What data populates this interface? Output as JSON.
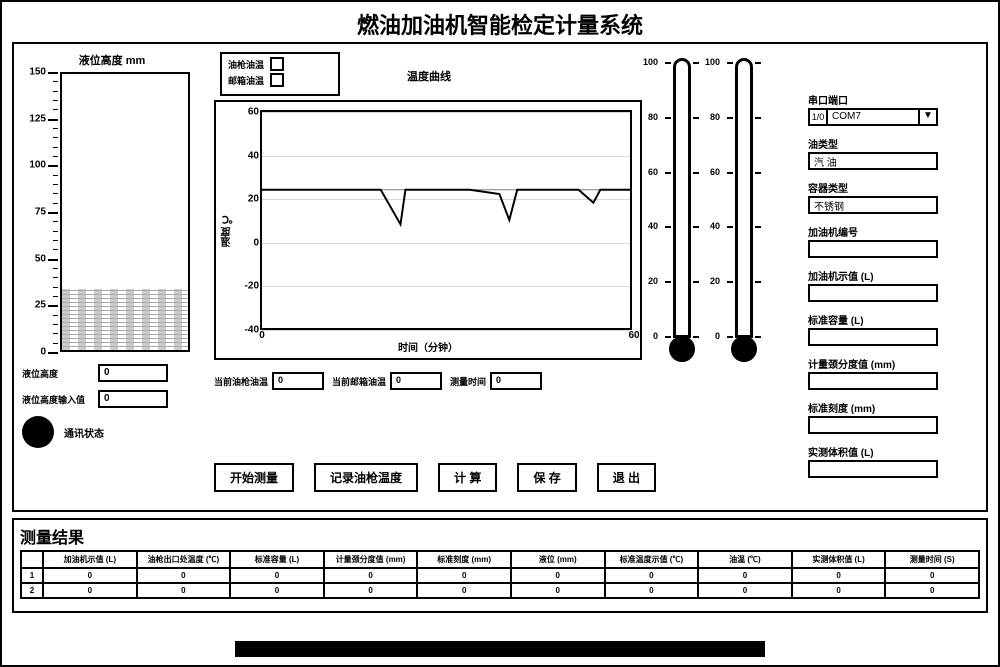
{
  "title": "燃油加油机智能检定计量系统",
  "colors": {
    "fg": "#000000",
    "bg": "#ffffff"
  },
  "tank": {
    "title": "液位高度 mm",
    "scale_max": 150,
    "scale_min": 0,
    "major_step": 25,
    "minor_step": 5,
    "liquid_pct": 22
  },
  "left_fields": {
    "height_label": "液位高度",
    "height_value": "0",
    "input_label": "液位高度输入值",
    "input_value": "0",
    "comm_label": "通讯状态"
  },
  "chart": {
    "title": "温度曲线",
    "legend1": "油枪油温",
    "legend2": "邮箱油温",
    "ylabel": "温度 ℃",
    "xlabel": "时间（分钟）",
    "ymin": -40,
    "ymax": 60,
    "ystep": 20,
    "xmin": 0,
    "xmax": 60,
    "xstep": 60,
    "series": [
      [
        0,
        24
      ],
      [
        80,
        24
      ],
      [
        120,
        24
      ],
      [
        140,
        8
      ],
      [
        145,
        24
      ],
      [
        210,
        24
      ],
      [
        240,
        22
      ],
      [
        250,
        10
      ],
      [
        258,
        24
      ],
      [
        320,
        24
      ],
      [
        335,
        18
      ],
      [
        342,
        24
      ],
      [
        372,
        24
      ]
    ],
    "series_y_at_24": 24,
    "readouts": {
      "r1_label": "当前油枪油温",
      "r1_value": "0",
      "r2_label": "当前邮箱油温",
      "r2_value": "0",
      "r3_label": "测量时间",
      "r3_value": "0"
    }
  },
  "buttons": {
    "start": "开始测量",
    "record": "记录油枪温度",
    "calc": "计 算",
    "save": "保 存",
    "exit": "退 出"
  },
  "thermo": {
    "min": 0,
    "max": 100,
    "step": 20
  },
  "form": {
    "port_label": "串口端口",
    "port_slot": "1/0",
    "port_value": "COM7",
    "oil_type_label": "油类型",
    "oil_type_value": "汽 油",
    "container_label": "容器类型",
    "container_value": "不锈钢",
    "machine_no_label": "加油机编号",
    "machine_no_value": "",
    "nominal_label": "加油机示值 (L)",
    "nominal_value": "",
    "std_cap_label": "标准容量 (L)",
    "std_cap_value": "",
    "scale_div_label": "计量颈分度值 (mm)",
    "scale_div_value": "",
    "std_scale_label": "标准刻度 (mm)",
    "std_scale_value": "",
    "actual_label": "实测体积值 (L)",
    "actual_value": ""
  },
  "results": {
    "title": "测量结果",
    "columns": [
      "加油机示值 (L)",
      "油枪出口处温度 (℃)",
      "标准容量 (L)",
      "计量颈分度值 (mm)",
      "标准刻度 (mm)",
      "液位 (mm)",
      "标准温度示值 (℃)",
      "油温 (℃)",
      "实测体积值 (L)",
      "测量时间 (S)"
    ],
    "rows": [
      [
        "0",
        "0",
        "0",
        "0",
        "0",
        "0",
        "0",
        "0",
        "0",
        "0"
      ],
      [
        "0",
        "0",
        "0",
        "0",
        "0",
        "0",
        "0",
        "0",
        "0",
        "0"
      ]
    ]
  }
}
